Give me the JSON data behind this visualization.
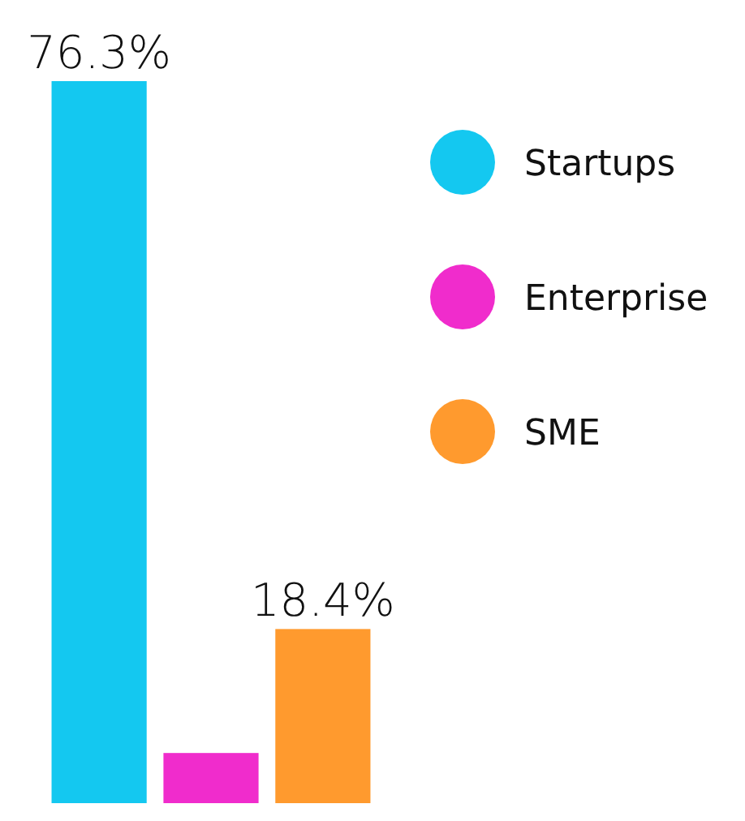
{
  "chart_data": {
    "type": "bar",
    "categories": [
      null
    ],
    "series": [
      {
        "name": "Startups",
        "color": "#14c8f0",
        "values": [
          76.3
        ],
        "value_labels": [
          "76.3%"
        ]
      },
      {
        "name": "Enterprise",
        "color": "#f02ccc",
        "values": [
          5.3
        ],
        "value_labels": [
          null
        ]
      },
      {
        "name": "SME",
        "color": "#ff9a2e",
        "values": [
          18.4
        ],
        "value_labels": [
          "18.4%"
        ]
      }
    ],
    "legend": "right"
  }
}
